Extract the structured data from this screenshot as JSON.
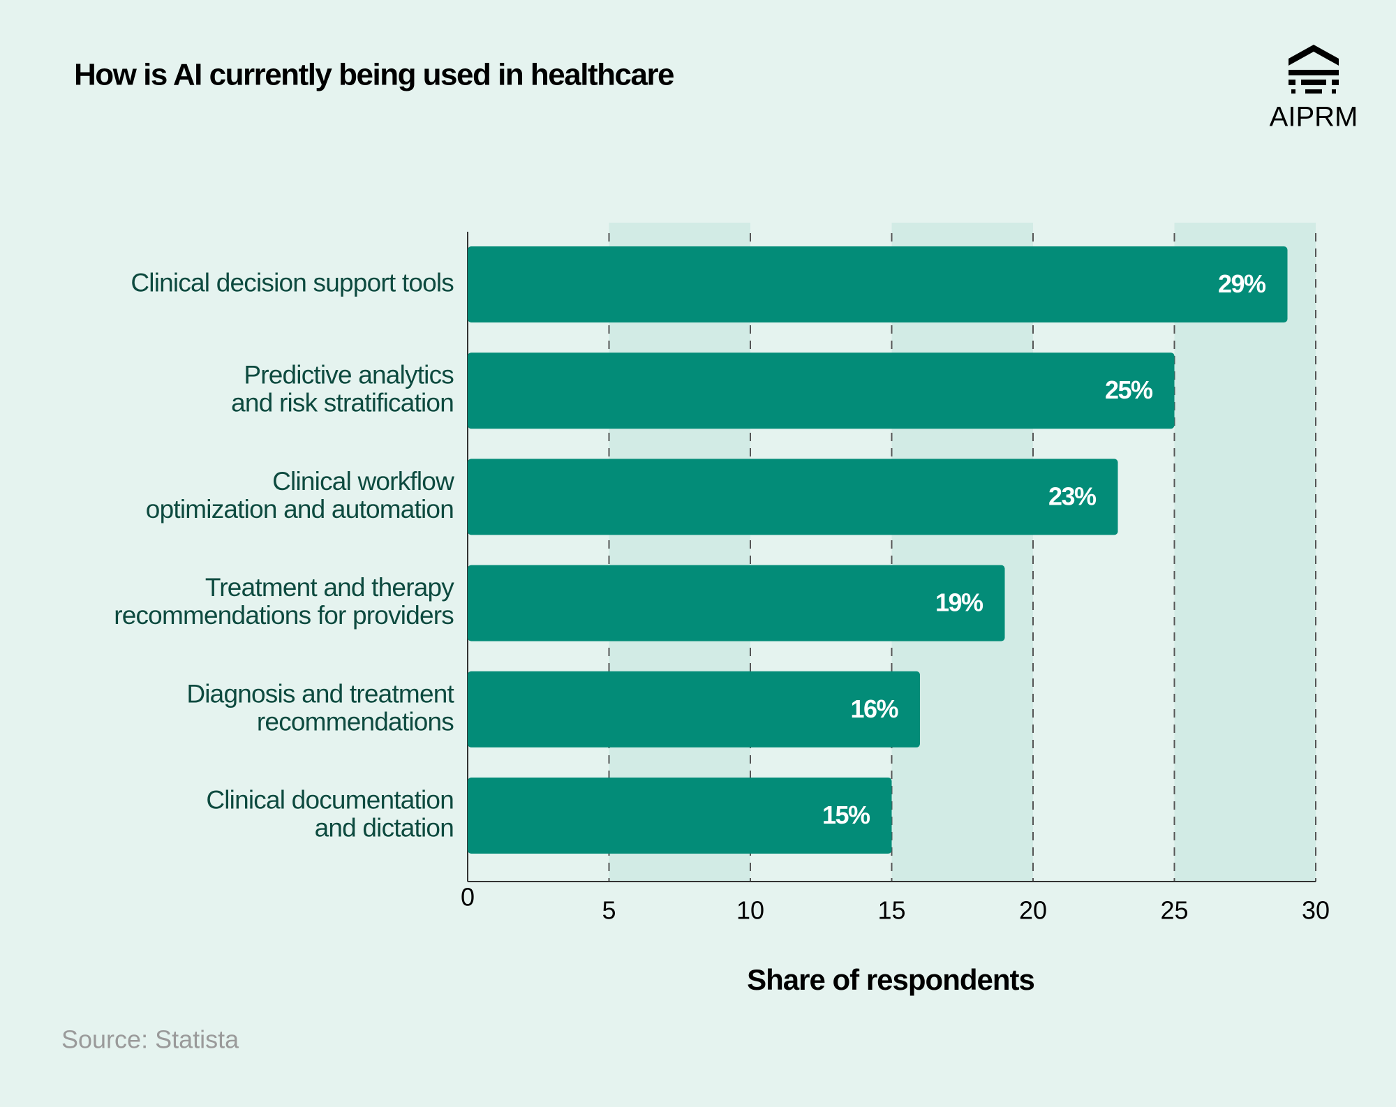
{
  "chart_data": {
    "type": "bar",
    "orientation": "horizontal",
    "title": "How is AI currently being used in healthcare",
    "brand": "AIPRM",
    "categories": [
      "Clinical decision support tools",
      "Predictive analytics\nand risk stratification",
      "Clinical workflow\noptimization and automation",
      "Treatment and therapy\nrecommendations for providers",
      "Diagnosis and treatment\nrecommendations",
      "Clinical documentation\nand dictation"
    ],
    "values": [
      29,
      25,
      23,
      19,
      16,
      15
    ],
    "value_labels": [
      "29%",
      "25%",
      "23%",
      "19%",
      "16%",
      "15%"
    ],
    "color": "#038c78",
    "xlim": [
      0,
      30
    ],
    "xticks": [
      0,
      5,
      10,
      15,
      20,
      25,
      30
    ],
    "xlabel": "Share of respondents",
    "grid": true,
    "source": "Source: Statista"
  }
}
